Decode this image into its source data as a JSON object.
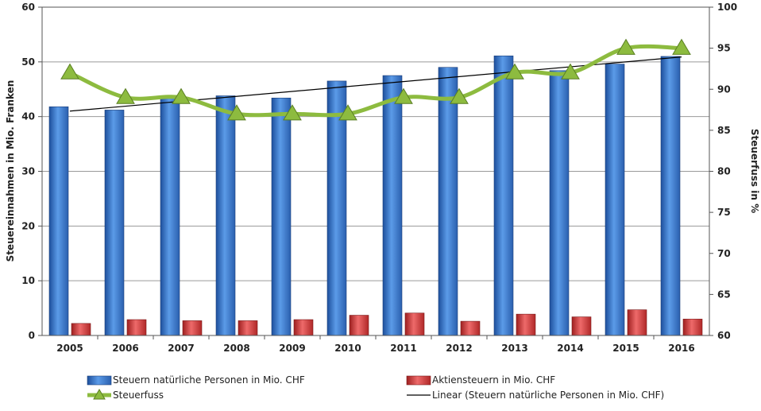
{
  "chart_data": {
    "type": "bar",
    "categories": [
      "2005",
      "2006",
      "2007",
      "2008",
      "2009",
      "2010",
      "2011",
      "2012",
      "2013",
      "2014",
      "2015",
      "2016"
    ],
    "series": [
      {
        "name": "Steuern natürliche Personen in Mio. CHF",
        "type": "bar",
        "axis": "left",
        "color": "#3a78c9",
        "values": [
          41.8,
          41.2,
          43.5,
          43.8,
          43.4,
          46.5,
          47.5,
          49.0,
          51.1,
          48.4,
          49.6,
          51.0
        ]
      },
      {
        "name": "Aktiensteuern in Mio. CHF",
        "type": "bar",
        "axis": "left",
        "color": "#d23a3a",
        "values": [
          2.2,
          2.9,
          2.7,
          2.7,
          2.9,
          3.7,
          4.1,
          2.6,
          3.9,
          3.4,
          4.7,
          3.0
        ]
      },
      {
        "name": "Steuerfuss",
        "type": "line",
        "axis": "right",
        "color": "#8dbb3f",
        "marker": "triangle",
        "values": [
          92,
          89,
          89,
          87,
          87,
          87,
          89,
          89,
          92,
          92,
          95,
          95
        ]
      },
      {
        "name": "Linear (Steuern natürliche Personen in Mio. CHF)",
        "type": "trendline",
        "axis": "left",
        "color": "#000000",
        "values": [
          41.0,
          41.9,
          42.8,
          43.7,
          44.6,
          45.5,
          46.4,
          47.3,
          48.2,
          49.1,
          50.0,
          50.9
        ]
      }
    ],
    "ylabel": "Steuereinnahmen in Mio. Franken",
    "y2label": "Steuerfuss in %",
    "ylim": [
      0,
      60
    ],
    "y2lim": [
      60,
      100
    ],
    "yticks": [
      "0",
      "10",
      "20",
      "30",
      "40",
      "50",
      "60"
    ],
    "y2ticks": [
      "60",
      "65",
      "70",
      "75",
      "80",
      "85",
      "90",
      "95",
      "100"
    ],
    "grid": true,
    "legend_position": "bottom"
  }
}
